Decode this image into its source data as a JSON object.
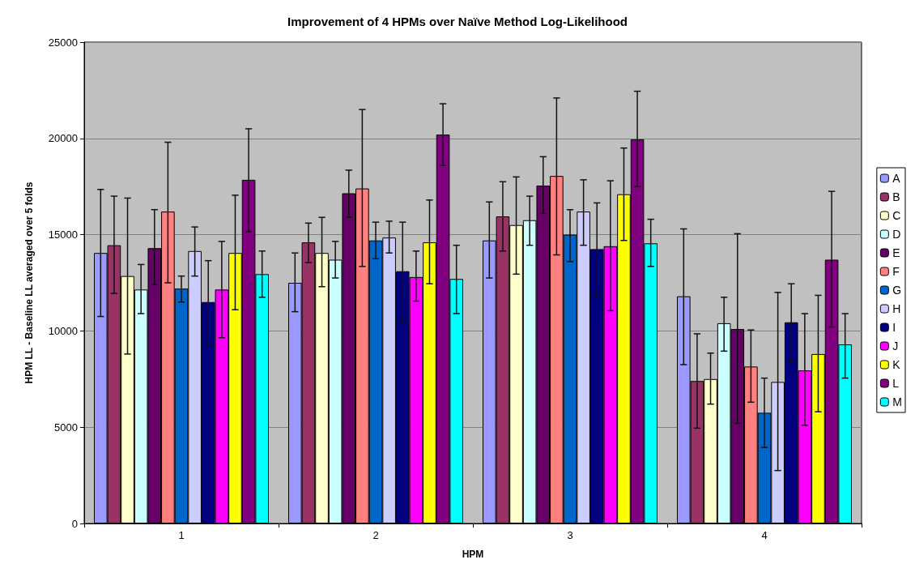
{
  "chart_data": {
    "type": "bar",
    "title": "Improvement of 4 HPMs over Naïve Method Log-Likelihood",
    "xlabel": "HPM",
    "ylabel": "HPM LL - Baseline LL averaged over 5 folds",
    "categories": [
      "1",
      "2",
      "3",
      "4"
    ],
    "ylim": [
      0,
      25000
    ],
    "yticks": [
      0,
      5000,
      10000,
      15000,
      20000,
      25000
    ],
    "grid": "y",
    "legend": "right",
    "series": [
      {
        "name": "A",
        "color": "#9999ff",
        "values": [
          14050,
          12500,
          14700,
          11800
        ],
        "errors": [
          [
            10750,
            17350
          ],
          [
            11000,
            14050
          ],
          [
            12750,
            16700
          ],
          [
            8250,
            15300
          ]
        ]
      },
      {
        "name": "B",
        "color": "#993366",
        "values": [
          14450,
          14600,
          15950,
          7400
        ],
        "errors": [
          [
            11950,
            17000
          ],
          [
            13550,
            15600
          ],
          [
            14150,
            17750
          ],
          [
            4950,
            9850
          ]
        ]
      },
      {
        "name": "C",
        "color": "#ffffcc",
        "values": [
          12850,
          14050,
          15500,
          7500
        ],
        "errors": [
          [
            8800,
            16900
          ],
          [
            12300,
            15900
          ],
          [
            12950,
            18000
          ],
          [
            6200,
            8850
          ]
        ]
      },
      {
        "name": "D",
        "color": "#ccffff",
        "values": [
          12150,
          13700,
          15750,
          10400
        ],
        "errors": [
          [
            10900,
            13450
          ],
          [
            12750,
            14650
          ],
          [
            14450,
            17000
          ],
          [
            8950,
            11750
          ]
        ]
      },
      {
        "name": "E",
        "color": "#660066",
        "values": [
          14300,
          17150,
          17550,
          10100
        ],
        "errors": [
          [
            12400,
            16300
          ],
          [
            15900,
            18350
          ],
          [
            16100,
            19050
          ],
          [
            5200,
            15050
          ]
        ]
      },
      {
        "name": "F",
        "color": "#ff8080",
        "values": [
          16200,
          17400,
          18050,
          8150
        ],
        "errors": [
          [
            12500,
            19800
          ],
          [
            13350,
            21500
          ],
          [
            13950,
            22100
          ],
          [
            6300,
            10050
          ]
        ]
      },
      {
        "name": "G",
        "color": "#0066cc",
        "values": [
          12200,
          14700,
          15000,
          5750
        ],
        "errors": [
          [
            11500,
            12850
          ],
          [
            13750,
            15650
          ],
          [
            13600,
            16300
          ],
          [
            3950,
            7550
          ]
        ]
      },
      {
        "name": "H",
        "color": "#ccccff",
        "values": [
          14150,
          14850,
          16200,
          7350
        ],
        "errors": [
          [
            12850,
            15400
          ],
          [
            14050,
            15700
          ],
          [
            14450,
            17850
          ],
          [
            2750,
            12000
          ]
        ]
      },
      {
        "name": "I",
        "color": "#000080",
        "values": [
          11500,
          13100,
          14250,
          10450
        ],
        "errors": [
          [
            9250,
            13650
          ],
          [
            10500,
            15650
          ],
          [
            11850,
            16650
          ],
          [
            8400,
            12450
          ]
        ]
      },
      {
        "name": "J",
        "color": "#ff00ff",
        "values": [
          12150,
          12800,
          14400,
          7950
        ],
        "errors": [
          [
            9650,
            14650
          ],
          [
            11550,
            14150
          ],
          [
            11050,
            17800
          ],
          [
            5100,
            10900
          ]
        ]
      },
      {
        "name": "K",
        "color": "#ffff00",
        "values": [
          14050,
          14600,
          17100,
          8800
        ],
        "errors": [
          [
            11100,
            17050
          ],
          [
            12450,
            16800
          ],
          [
            14700,
            19500
          ],
          [
            5800,
            11850
          ]
        ]
      },
      {
        "name": "L",
        "color": "#800080",
        "values": [
          17850,
          20200,
          19950,
          13700
        ],
        "errors": [
          [
            15150,
            20500
          ],
          [
            18600,
            21800
          ],
          [
            17500,
            22450
          ],
          [
            10200,
            17250
          ]
        ]
      },
      {
        "name": "M",
        "color": "#00ffff",
        "values": [
          12950,
          12700,
          14550,
          9300
        ],
        "errors": [
          [
            11750,
            14150
          ],
          [
            10900,
            14450
          ],
          [
            13350,
            15800
          ],
          [
            7550,
            10900
          ]
        ]
      }
    ]
  }
}
